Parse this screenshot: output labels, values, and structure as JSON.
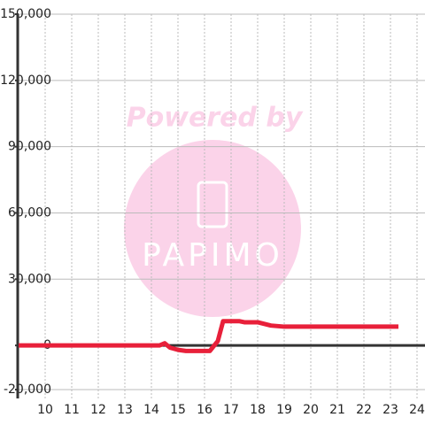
{
  "chart_data": {
    "type": "line",
    "watermark": {
      "text": "Powered by",
      "logo": "PAPIMO"
    },
    "x": [
      9,
      14.3,
      14.5,
      14.7,
      15,
      15.3,
      16.2,
      16.5,
      16.7,
      17.3,
      17.5,
      18,
      18.5,
      19,
      23.3
    ],
    "series": [
      {
        "color": "#e8203a",
        "values": [
          0,
          0,
          1000,
          -1000,
          -2000,
          -2500,
          -2500,
          2000,
          11000,
          11000,
          10500,
          10500,
          9000,
          8500,
          8500
        ]
      }
    ],
    "xlim": [
      9,
      24.3
    ],
    "xticks": [
      10,
      11,
      12,
      13,
      14,
      15,
      16,
      17,
      18,
      19,
      20,
      21,
      22,
      23,
      24
    ],
    "ylim": [
      -24000,
      150000
    ],
    "yticks": [
      {
        "value": -20000,
        "label": "-20,000"
      },
      0,
      {
        "value": 30000,
        "label": "30,000"
      },
      {
        "value": 60000,
        "label": "60,000"
      },
      {
        "value": 90000,
        "label": "90,000"
      },
      {
        "value": 120000,
        "label": "120,000"
      },
      {
        "value": 150000,
        "label": "150,000"
      }
    ],
    "grid": true
  }
}
